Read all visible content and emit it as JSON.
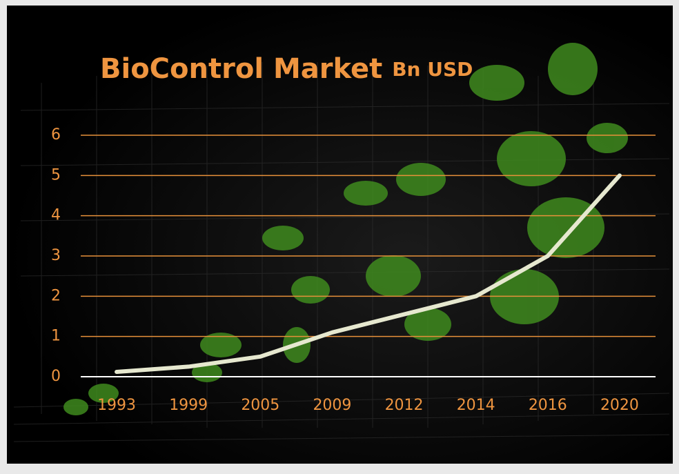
{
  "chart_data": {
    "type": "line",
    "title": "BioControl Market",
    "unit": "Bn USD",
    "categories": [
      "1993",
      "1999",
      "2005",
      "2009",
      "2012",
      "2014",
      "2016",
      "2020"
    ],
    "values": [
      0.12,
      0.25,
      0.5,
      1.1,
      1.55,
      2.0,
      3.0,
      5.0
    ],
    "color": "#e6e8cf",
    "grid_color": "#e8913a",
    "label_color": "#ef9540",
    "ylim": [
      0,
      6
    ],
    "yticks": [
      0,
      1,
      2,
      3,
      4,
      5,
      6
    ],
    "grid": true
  }
}
